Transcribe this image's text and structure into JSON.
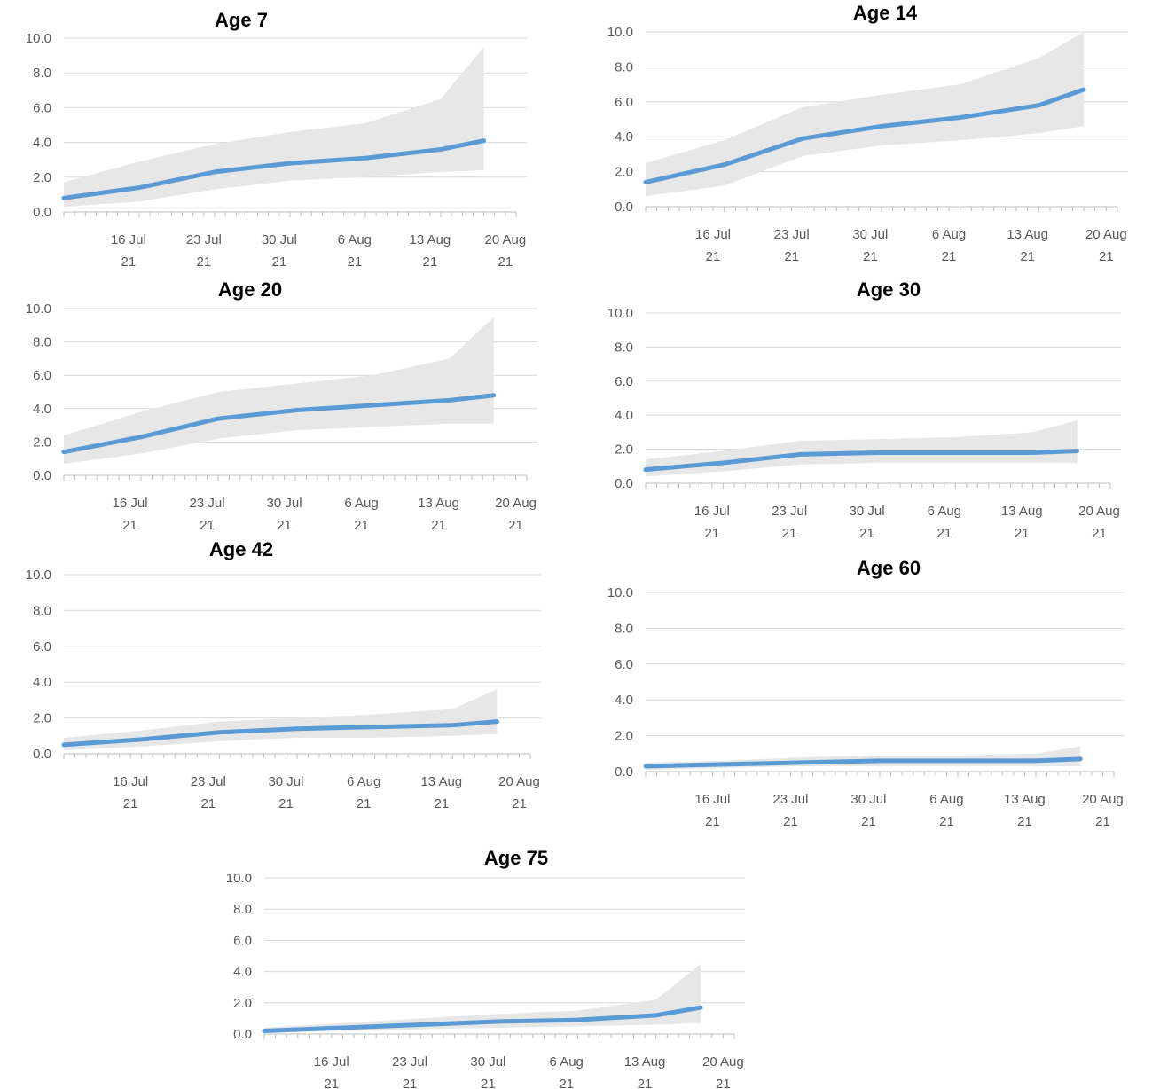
{
  "chart_data": [
    {
      "type": "line",
      "title": "Age 7",
      "ylim": [
        0,
        10
      ],
      "y_ticks": [
        "0.0",
        "2.0",
        "4.0",
        "6.0",
        "8.0",
        "10.0"
      ],
      "x_tick_labels": [
        [
          "16 Jul",
          "21"
        ],
        [
          "23 Jul",
          "21"
        ],
        [
          "30 Jul",
          "21"
        ],
        [
          "6 Aug",
          "21"
        ],
        [
          "13 Aug",
          "21"
        ],
        [
          "20 Aug",
          "21"
        ]
      ],
      "x_start": "2021-07-10",
      "x_end": "2021-08-21",
      "grid": true,
      "colors": {
        "line": "#5b9bd5",
        "band": "#e7e7e7"
      },
      "series": [
        {
          "x": [
            "2021-07-10",
            "2021-07-17",
            "2021-07-24",
            "2021-07-31",
            "2021-08-07",
            "2021-08-14",
            "2021-08-18"
          ],
          "values": [
            0.8,
            1.4,
            2.3,
            2.8,
            3.1,
            3.6,
            4.1
          ],
          "upper": [
            1.7,
            2.9,
            3.9,
            4.6,
            5.1,
            6.5,
            9.5
          ],
          "lower": [
            0.3,
            0.6,
            1.3,
            1.8,
            2.0,
            2.3,
            2.4
          ]
        }
      ]
    },
    {
      "type": "line",
      "title": "Age 14",
      "ylim": [
        0,
        10
      ],
      "y_ticks": [
        "0.0",
        "2.0",
        "4.0",
        "6.0",
        "8.0",
        "10.0"
      ],
      "x_tick_labels": [
        [
          "16 Jul",
          "21"
        ],
        [
          "23 Jul",
          "21"
        ],
        [
          "30 Jul",
          "21"
        ],
        [
          "6 Aug",
          "21"
        ],
        [
          "13 Aug",
          "21"
        ],
        [
          "20 Aug",
          "21"
        ]
      ],
      "x_start": "2021-07-10",
      "x_end": "2021-08-21",
      "grid": true,
      "colors": {
        "line": "#5b9bd5",
        "band": "#e7e7e7"
      },
      "series": [
        {
          "x": [
            "2021-07-10",
            "2021-07-17",
            "2021-07-24",
            "2021-07-31",
            "2021-08-07",
            "2021-08-14",
            "2021-08-18"
          ],
          "values": [
            1.4,
            2.4,
            3.9,
            4.6,
            5.1,
            5.8,
            6.7
          ],
          "upper": [
            2.5,
            3.8,
            5.7,
            6.4,
            7.0,
            8.5,
            10.0
          ],
          "lower": [
            0.6,
            1.2,
            2.9,
            3.5,
            3.8,
            4.2,
            4.6
          ]
        }
      ]
    },
    {
      "type": "line",
      "title": "Age 20",
      "ylim": [
        0,
        10
      ],
      "y_ticks": [
        "0.0",
        "2.0",
        "4.0",
        "6.0",
        "8.0",
        "10.0"
      ],
      "x_tick_labels": [
        [
          "16 Jul",
          "21"
        ],
        [
          "23 Jul",
          "21"
        ],
        [
          "30 Jul",
          "21"
        ],
        [
          "6 Aug",
          "21"
        ],
        [
          "13 Aug",
          "21"
        ],
        [
          "20 Aug",
          "21"
        ]
      ],
      "x_start": "2021-07-10",
      "x_end": "2021-08-21",
      "grid": true,
      "colors": {
        "line": "#5b9bd5",
        "band": "#e7e7e7"
      },
      "series": [
        {
          "x": [
            "2021-07-10",
            "2021-07-17",
            "2021-07-24",
            "2021-07-31",
            "2021-08-07",
            "2021-08-14",
            "2021-08-18"
          ],
          "values": [
            1.4,
            2.3,
            3.4,
            3.9,
            4.2,
            4.5,
            4.8
          ],
          "upper": [
            2.4,
            3.8,
            5.0,
            5.5,
            6.0,
            7.0,
            9.5
          ],
          "lower": [
            0.7,
            1.3,
            2.2,
            2.7,
            2.9,
            3.1,
            3.1
          ]
        }
      ]
    },
    {
      "type": "line",
      "title": "Age 30",
      "ylim": [
        0,
        10
      ],
      "y_ticks": [
        "0.0",
        "2.0",
        "4.0",
        "6.0",
        "8.0",
        "10.0"
      ],
      "x_tick_labels": [
        [
          "16 Jul",
          "21"
        ],
        [
          "23 Jul",
          "21"
        ],
        [
          "30 Jul",
          "21"
        ],
        [
          "6 Aug",
          "21"
        ],
        [
          "13 Aug",
          "21"
        ],
        [
          "20 Aug",
          "21"
        ]
      ],
      "x_start": "2021-07-10",
      "x_end": "2021-08-21",
      "grid": true,
      "colors": {
        "line": "#5b9bd5",
        "band": "#e7e7e7"
      },
      "series": [
        {
          "x": [
            "2021-07-10",
            "2021-07-17",
            "2021-07-24",
            "2021-07-31",
            "2021-08-07",
            "2021-08-14",
            "2021-08-18"
          ],
          "values": [
            0.8,
            1.2,
            1.7,
            1.8,
            1.8,
            1.8,
            1.9
          ],
          "upper": [
            1.4,
            1.9,
            2.5,
            2.6,
            2.7,
            3.0,
            3.7
          ],
          "lower": [
            0.4,
            0.7,
            1.1,
            1.2,
            1.2,
            1.2,
            1.2
          ]
        }
      ]
    },
    {
      "type": "line",
      "title": "Age 42",
      "ylim": [
        0,
        10
      ],
      "y_ticks": [
        "0.0",
        "2.0",
        "4.0",
        "6.0",
        "8.0",
        "10.0"
      ],
      "x_tick_labels": [
        [
          "16 Jul",
          "21"
        ],
        [
          "23 Jul",
          "21"
        ],
        [
          "30 Jul",
          "21"
        ],
        [
          "6 Aug",
          "21"
        ],
        [
          "13 Aug",
          "21"
        ],
        [
          "20 Aug",
          "21"
        ]
      ],
      "x_start": "2021-07-10",
      "x_end": "2021-08-21",
      "grid": true,
      "colors": {
        "line": "#5b9bd5",
        "band": "#e7e7e7"
      },
      "series": [
        {
          "x": [
            "2021-07-10",
            "2021-07-17",
            "2021-07-24",
            "2021-07-31",
            "2021-08-07",
            "2021-08-14",
            "2021-08-18"
          ],
          "values": [
            0.5,
            0.8,
            1.2,
            1.4,
            1.5,
            1.6,
            1.8
          ],
          "upper": [
            0.9,
            1.3,
            1.8,
            2.0,
            2.2,
            2.5,
            3.6
          ],
          "lower": [
            0.2,
            0.4,
            0.7,
            0.9,
            0.9,
            1.0,
            1.1
          ]
        }
      ]
    },
    {
      "type": "line",
      "title": "Age 60",
      "ylim": [
        0,
        10
      ],
      "y_ticks": [
        "0.0",
        "2.0",
        "4.0",
        "6.0",
        "8.0",
        "10.0"
      ],
      "x_tick_labels": [
        [
          "16 Jul",
          "21"
        ],
        [
          "23 Jul",
          "21"
        ],
        [
          "30 Jul",
          "21"
        ],
        [
          "6 Aug",
          "21"
        ],
        [
          "13 Aug",
          "21"
        ],
        [
          "20 Aug",
          "21"
        ]
      ],
      "x_start": "2021-07-10",
      "x_end": "2021-08-21",
      "grid": true,
      "colors": {
        "line": "#5b9bd5",
        "band": "#e7e7e7"
      },
      "series": [
        {
          "x": [
            "2021-07-10",
            "2021-07-17",
            "2021-07-24",
            "2021-07-31",
            "2021-08-07",
            "2021-08-14",
            "2021-08-18"
          ],
          "values": [
            0.3,
            0.4,
            0.5,
            0.6,
            0.6,
            0.6,
            0.7
          ],
          "upper": [
            0.5,
            0.6,
            0.8,
            0.9,
            0.9,
            1.0,
            1.4
          ],
          "lower": [
            0.1,
            0.2,
            0.3,
            0.3,
            0.3,
            0.3,
            0.3
          ]
        }
      ]
    },
    {
      "type": "line",
      "title": "Age 75",
      "ylim": [
        0,
        10
      ],
      "y_ticks": [
        "0.0",
        "2.0",
        "4.0",
        "6.0",
        "8.0",
        "10.0"
      ],
      "x_tick_labels": [
        [
          "16 Jul",
          "21"
        ],
        [
          "23 Jul",
          "21"
        ],
        [
          "30 Jul",
          "21"
        ],
        [
          "6 Aug",
          "21"
        ],
        [
          "13 Aug",
          "21"
        ],
        [
          "20 Aug",
          "21"
        ]
      ],
      "x_start": "2021-07-10",
      "x_end": "2021-08-21",
      "grid": true,
      "colors": {
        "line": "#5b9bd5",
        "band": "#e7e7e7"
      },
      "series": [
        {
          "x": [
            "2021-07-10",
            "2021-07-17",
            "2021-07-24",
            "2021-07-31",
            "2021-08-07",
            "2021-08-14",
            "2021-08-18"
          ],
          "values": [
            0.2,
            0.4,
            0.6,
            0.8,
            0.9,
            1.2,
            1.7
          ],
          "upper": [
            0.4,
            0.7,
            1.0,
            1.3,
            1.5,
            2.2,
            4.5
          ],
          "lower": [
            0.1,
            0.2,
            0.3,
            0.4,
            0.5,
            0.6,
            0.7
          ]
        }
      ]
    }
  ]
}
